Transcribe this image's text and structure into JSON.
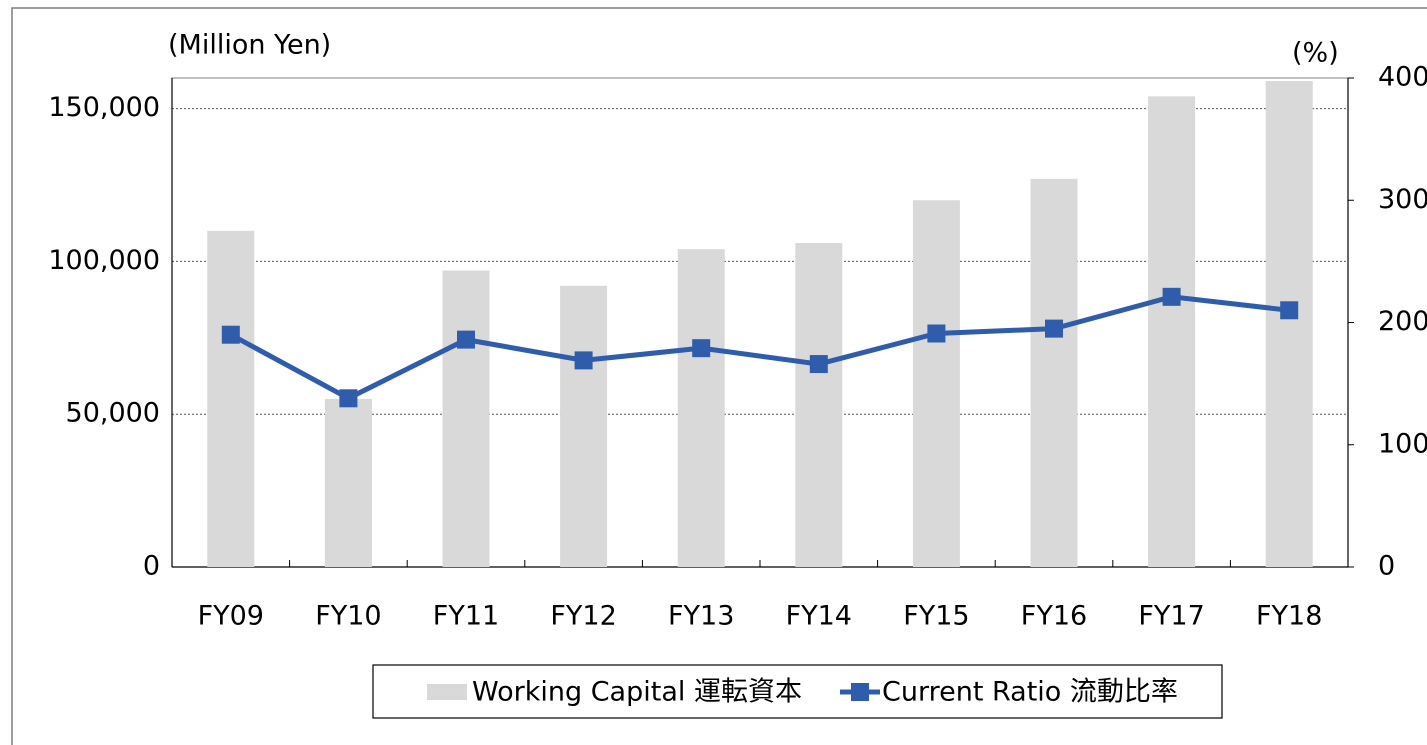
{
  "chart_data": {
    "type": "bar_line",
    "y_label": "(Million Yen)",
    "y2_label": "(%)",
    "categories": [
      "FY09",
      "FY10",
      "FY11",
      "FY12",
      "FY13",
      "FY14",
      "FY15",
      "FY16",
      "FY17",
      "FY18"
    ],
    "series": [
      {
        "name": "Working Capital 運転資本",
        "type": "bar",
        "color": "#d9d9d9",
        "values": [
          110000,
          55000,
          97000,
          92000,
          104000,
          106000,
          120000,
          127000,
          154000,
          159000
        ]
      },
      {
        "name": "Current Ratio 流動比率",
        "type": "line",
        "axis": "y2",
        "color": "#2f5dab",
        "values": [
          190,
          138,
          186,
          169,
          179,
          166,
          191,
          195,
          221,
          210
        ]
      }
    ],
    "ylim": [
      0,
      160000
    ],
    "yticks": [
      0,
      {
        "value": 50000,
        "label": "50,000"
      },
      {
        "value": 100000,
        "label": "100,000"
      },
      {
        "value": 150000,
        "label": "150,000"
      }
    ],
    "y2lim": [
      0,
      400
    ],
    "y2ticks": [
      0,
      100,
      200,
      300,
      400
    ],
    "grid": true,
    "legend": "bottom"
  }
}
